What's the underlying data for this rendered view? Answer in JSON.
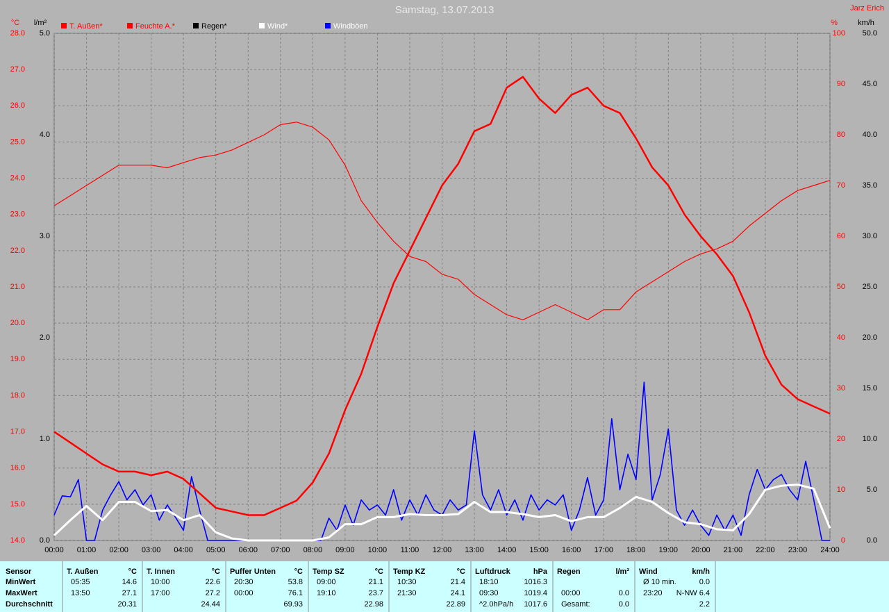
{
  "chart_data": {
    "type": "line",
    "title": "Samstag, 13.07.2013",
    "author": "Jarz Erich",
    "ylabel": "°C",
    "y2label": "%",
    "y3label": "km/h",
    "y4label": "l/m²",
    "xlim": [
      0,
      24
    ],
    "xticks": [
      {
        "value": 0,
        "label": "00:00"
      },
      {
        "value": 1,
        "label": "01:00"
      },
      {
        "value": 2,
        "label": "02:00"
      },
      {
        "value": 3,
        "label": "03:00"
      },
      {
        "value": 4,
        "label": "04:00"
      },
      {
        "value": 5,
        "label": "05:00"
      },
      {
        "value": 6,
        "label": "06:00"
      },
      {
        "value": 7,
        "label": "07:00"
      },
      {
        "value": 8,
        "label": "08:00"
      },
      {
        "value": 9,
        "label": "09:00"
      },
      {
        "value": 10,
        "label": "10:00"
      },
      {
        "value": 11,
        "label": "11:00"
      },
      {
        "value": 12,
        "label": "12:00"
      },
      {
        "value": 13,
        "label": "13:00"
      },
      {
        "value": 14,
        "label": "14:00"
      },
      {
        "value": 15,
        "label": "15:00"
      },
      {
        "value": 16,
        "label": "16:00"
      },
      {
        "value": 17,
        "label": "17:00"
      },
      {
        "value": 18,
        "label": "18:00"
      },
      {
        "value": 19,
        "label": "19:00"
      },
      {
        "value": 20,
        "label": "20:00"
      },
      {
        "value": 21,
        "label": "21:00"
      },
      {
        "value": 22,
        "label": "22:00"
      },
      {
        "value": 23,
        "label": "23:00"
      },
      {
        "value": 24,
        "label": "24:00"
      }
    ],
    "ylim": [
      14,
      28
    ],
    "yticks": [
      {
        "value": 14,
        "label": "14.0"
      },
      {
        "value": 15,
        "label": "15.0"
      },
      {
        "value": 16,
        "label": "16.0"
      },
      {
        "value": 17,
        "label": "17.0"
      },
      {
        "value": 18,
        "label": "18.0"
      },
      {
        "value": 19,
        "label": "19.0"
      },
      {
        "value": 20,
        "label": "20.0"
      },
      {
        "value": 21,
        "label": "21.0"
      },
      {
        "value": 22,
        "label": "22.0"
      },
      {
        "value": 23,
        "label": "23.0"
      },
      {
        "value": 24,
        "label": "24.0"
      },
      {
        "value": 25,
        "label": "25.0"
      },
      {
        "value": 26,
        "label": "26.0"
      },
      {
        "value": 27,
        "label": "27.0"
      },
      {
        "value": 28,
        "label": "28.0"
      }
    ],
    "y2lim": [
      0,
      100
    ],
    "y2ticks": [
      0,
      10,
      20,
      30,
      40,
      50,
      60,
      70,
      80,
      90,
      100
    ],
    "y3lim": [
      0,
      50
    ],
    "y3ticks": [
      {
        "value": 0,
        "label": "0.0"
      },
      {
        "value": 5,
        "label": "5.0"
      },
      {
        "value": 10,
        "label": "10.0"
      },
      {
        "value": 15,
        "label": "15.0"
      },
      {
        "value": 20,
        "label": "20.0"
      },
      {
        "value": 25,
        "label": "25.0"
      },
      {
        "value": 30,
        "label": "30.0"
      },
      {
        "value": 35,
        "label": "35.0"
      },
      {
        "value": 40,
        "label": "40.0"
      },
      {
        "value": 45,
        "label": "45.0"
      },
      {
        "value": 50,
        "label": "50.0"
      }
    ],
    "y4lim": [
      0,
      5
    ],
    "y4ticks": [
      {
        "value": 0,
        "label": "0.0"
      },
      {
        "value": 1,
        "label": "1.0"
      },
      {
        "value": 2,
        "label": "2.0"
      },
      {
        "value": 3,
        "label": "3.0"
      },
      {
        "value": 4,
        "label": "4.0"
      },
      {
        "value": 5,
        "label": "5.0"
      }
    ],
    "grid": true,
    "x": [
      0,
      0.5,
      1,
      1.5,
      2,
      2.5,
      3,
      3.5,
      4,
      4.5,
      5,
      5.5,
      6,
      6.5,
      7,
      7.5,
      8,
      8.5,
      9,
      9.5,
      10,
      10.5,
      11,
      11.5,
      12,
      12.5,
      13,
      13.5,
      14,
      14.5,
      15,
      15.5,
      16,
      16.5,
      17,
      17.5,
      18,
      18.5,
      19,
      19.5,
      20,
      20.5,
      21,
      21.5,
      22,
      22.5,
      23,
      23.5,
      24
    ],
    "series": [
      {
        "name": "T. Außen*",
        "color": "#ff0000",
        "axis": "y",
        "width": 2.5,
        "values": [
          17.0,
          16.7,
          16.4,
          16.1,
          15.9,
          15.9,
          15.8,
          15.9,
          15.7,
          15.3,
          14.9,
          14.8,
          14.7,
          14.7,
          14.9,
          15.1,
          15.6,
          16.4,
          17.6,
          18.6,
          19.9,
          21.1,
          22.0,
          22.9,
          23.8,
          24.4,
          25.3,
          25.5,
          26.5,
          26.8,
          26.2,
          25.8,
          26.3,
          26.5,
          26.0,
          25.8,
          25.1,
          24.3,
          23.8,
          23.0,
          22.4,
          21.9,
          21.3,
          20.3,
          19.1,
          18.3,
          17.9,
          17.7,
          17.5
        ]
      },
      {
        "name": "Feuchte A.*",
        "color": "#ff0000",
        "axis": "y2",
        "width": 1.2,
        "values": [
          66,
          68,
          70,
          72,
          74,
          74,
          74,
          73.5,
          74.5,
          75.5,
          76,
          77,
          78.5,
          80,
          82,
          82.5,
          81.5,
          79,
          74,
          67,
          62.7,
          59,
          56,
          55,
          52.5,
          51.5,
          48.5,
          46.5,
          44.5,
          43.5,
          45,
          46.5,
          45,
          43.5,
          45.5,
          45.5,
          49,
          51,
          53,
          55,
          56.5,
          57.5,
          59,
          62,
          64.5,
          67,
          69,
          70,
          71
        ]
      },
      {
        "name": "Regen*",
        "color": "#000000",
        "axis": "y4"
      },
      {
        "name": "Wind*",
        "color": "#ffffff",
        "axis": "y3",
        "width": 3,
        "values": [
          0.5,
          2.0,
          3.4,
          2.0,
          3.8,
          3.8,
          2.9,
          3.0,
          2.0,
          2.5,
          0.8,
          0.2,
          0,
          0,
          0,
          0,
          0,
          0.3,
          1.6,
          1.6,
          2.3,
          2.3,
          2.6,
          2.5,
          2.5,
          2.6,
          3.8,
          2.8,
          2.8,
          2.6,
          2.3,
          2.5,
          1.9,
          2.3,
          2.3,
          3.2,
          4.3,
          3.8,
          2.7,
          1.8,
          1.6,
          1.1,
          1.0,
          2.6,
          5.0,
          5.4,
          5.5,
          5.1,
          1.2
        ]
      },
      {
        "name": "Windböen",
        "color": "#0000ff",
        "axis": "y3",
        "width": 1.6,
        "x": [
          0,
          0.25,
          0.5,
          0.75,
          1,
          1.25,
          1.5,
          1.75,
          2,
          2.25,
          2.5,
          2.75,
          3,
          3.25,
          3.5,
          3.75,
          4,
          4.25,
          4.5,
          4.75,
          5,
          5.25,
          5.5,
          5.75,
          6,
          6.25,
          6.5,
          6.75,
          7,
          7.25,
          7.5,
          7.75,
          8,
          8.25,
          8.5,
          8.75,
          9,
          9.25,
          9.5,
          9.75,
          10,
          10.25,
          10.5,
          10.75,
          11,
          11.25,
          11.5,
          11.75,
          12,
          12.25,
          12.5,
          12.75,
          13,
          13.25,
          13.5,
          13.75,
          14,
          14.25,
          14.5,
          14.75,
          15,
          15.25,
          15.5,
          15.75,
          16,
          16.25,
          16.5,
          16.75,
          17,
          17.25,
          17.5,
          17.75,
          18,
          18.25,
          18.5,
          18.75,
          19,
          19.25,
          19.5,
          19.75,
          20,
          20.25,
          20.5,
          20.75,
          21,
          21.25,
          21.5,
          21.75,
          22,
          22.25,
          22.5,
          22.75,
          23,
          23.25,
          23.5,
          23.75,
          24
        ],
        "values": [
          2.5,
          4.4,
          4.3,
          6.0,
          0,
          0,
          3.0,
          4.5,
          5.8,
          4.0,
          5.0,
          3.5,
          4.5,
          2.0,
          3.5,
          2.3,
          1.0,
          6.3,
          3.0,
          0,
          0,
          0,
          0,
          0,
          0,
          0,
          0,
          0,
          0,
          0,
          0,
          0,
          0,
          0,
          2.2,
          1.0,
          3.5,
          1.5,
          4.0,
          3.0,
          3.5,
          2.5,
          5.0,
          2.0,
          4.0,
          2.5,
          4.5,
          3.0,
          2.5,
          4.0,
          3.0,
          3.5,
          10.8,
          4.5,
          3.0,
          5.0,
          2.5,
          4.0,
          2.0,
          4.5,
          3.0,
          4.0,
          3.5,
          4.5,
          1.0,
          3.0,
          6.2,
          2.5,
          4.0,
          12.0,
          5.0,
          8.5,
          6.0,
          15.6,
          4.0,
          6.5,
          11.0,
          3.0,
          1.5,
          3.0,
          1.5,
          0.5,
          2.5,
          1.0,
          2.5,
          0.5,
          4.5,
          7.0,
          5.0,
          6.0,
          6.5,
          5.0,
          4.0,
          7.8,
          4.0,
          0,
          0
        ]
      }
    ]
  },
  "table": {
    "header": "Sensor",
    "row_labels": [
      "MinWert",
      "MaxWert",
      "Durchschnitt"
    ],
    "columns": [
      {
        "name": "T. Außen",
        "unit": "°C",
        "rows": [
          [
            "05:35",
            "14.6"
          ],
          [
            "13:50",
            "27.1"
          ],
          [
            null,
            "20.31"
          ]
        ]
      },
      {
        "name": "T. Innen",
        "unit": "°C",
        "rows": [
          [
            "10:00",
            "22.6"
          ],
          [
            "17:00",
            "27.2"
          ],
          [
            null,
            "24.44"
          ]
        ]
      },
      {
        "name": "Puffer Unten",
        "unit": "°C",
        "rows": [
          [
            "20:30",
            "53.8"
          ],
          [
            "00:00",
            "76.1"
          ],
          [
            null,
            "69.93"
          ]
        ]
      },
      {
        "name": "Temp SZ",
        "unit": "°C",
        "rows": [
          [
            "09:00",
            "21.1"
          ],
          [
            "19:10",
            "23.7"
          ],
          [
            null,
            "22.98"
          ]
        ]
      },
      {
        "name": "Temp KZ",
        "unit": "°C",
        "rows": [
          [
            "10:30",
            "21.4"
          ],
          [
            "21:30",
            "24.1"
          ],
          [
            null,
            "22.89"
          ]
        ]
      },
      {
        "name": "Luftdruck",
        "unit": "hPa",
        "rows": [
          [
            "18:10",
            "1016.3"
          ],
          [
            "09:30",
            "1019.4"
          ],
          [
            "^2.0hPa/h",
            "1017.6"
          ]
        ]
      },
      {
        "name": "Regen",
        "unit": "l/m²",
        "rows": [
          [
            null,
            null
          ],
          [
            "00:00",
            "0.0"
          ],
          [
            "Gesamt:",
            "0.0"
          ]
        ]
      },
      {
        "name": "Wind",
        "unit": "km/h",
        "rows": [
          [
            "Ø 10 min.",
            "0.0"
          ],
          [
            "23:20",
            "N-NW 6.4"
          ],
          [
            null,
            "2.2"
          ]
        ]
      }
    ]
  }
}
